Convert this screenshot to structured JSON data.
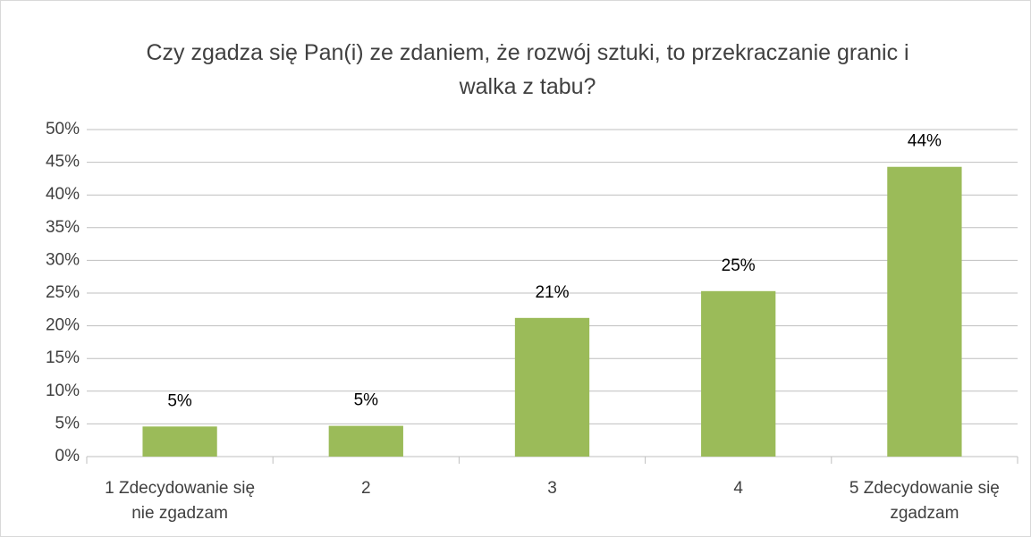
{
  "chart_data": {
    "type": "bar",
    "title": "Czy zgadza się Pan(i) ze zdaniem, że rozwój sztuki, to przekraczanie granic i walka z tabu?",
    "categories": [
      "1 Zdecydowanie się nie zgadzam",
      "2",
      "3",
      "4",
      "5 Zdecydowanie się zgadzam"
    ],
    "values": [
      4.6,
      4.7,
      21.2,
      25.3,
      44.3
    ],
    "value_labels": [
      "5%",
      "5%",
      "21%",
      "25%",
      "44%"
    ],
    "color": "#9bbb59",
    "ylim": [
      0,
      50
    ],
    "yticks": [
      {
        "value": 0,
        "label": "0%"
      },
      {
        "value": 5,
        "label": "5%"
      },
      {
        "value": 10,
        "label": "10%"
      },
      {
        "value": 15,
        "label": "15%"
      },
      {
        "value": 20,
        "label": "20%"
      },
      {
        "value": 25,
        "label": "25%"
      },
      {
        "value": 30,
        "label": "30%"
      },
      {
        "value": 35,
        "label": "35%"
      },
      {
        "value": 40,
        "label": "40%"
      },
      {
        "value": 45,
        "label": "45%"
      },
      {
        "value": 50,
        "label": "50%"
      }
    ],
    "grid": true
  }
}
